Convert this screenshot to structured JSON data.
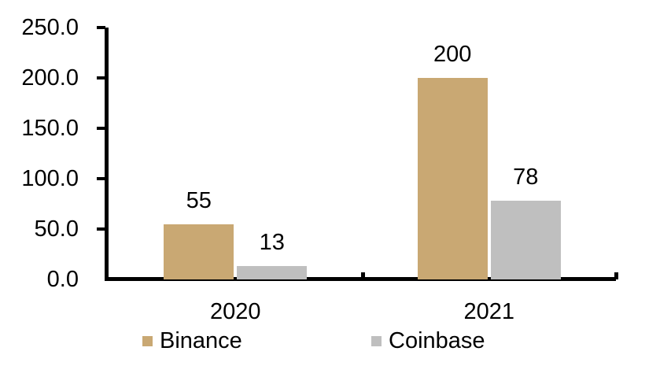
{
  "chart_data": {
    "type": "bar",
    "categories": [
      "2020",
      "2021"
    ],
    "series": [
      {
        "name": "Binance",
        "color": "#C9A873",
        "values": [
          55,
          200
        ]
      },
      {
        "name": "Coinbase",
        "color": "#BFBFBF",
        "values": [
          13,
          78
        ]
      }
    ],
    "title": "",
    "xlabel": "",
    "ylabel": "",
    "ylim": [
      0,
      250
    ],
    "ytick_step": 50,
    "ytick_labels": [
      "0.0",
      "50.0",
      "100.0",
      "150.0",
      "200.0",
      "250.0"
    ],
    "grid": false,
    "legend_position": "bottom",
    "axis_color": "#000000",
    "text_color": "#000000",
    "background_color": "#FFFFFF"
  }
}
